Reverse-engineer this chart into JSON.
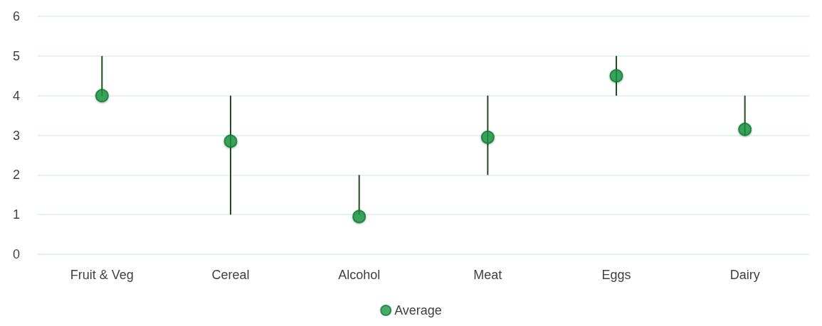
{
  "chart_data": {
    "type": "scatter",
    "categories": [
      "Fruit & Veg",
      "Cereal",
      "Alcohol",
      "Meat",
      "Eggs",
      "Dairy"
    ],
    "series": [
      {
        "name": "Average",
        "color": "#1a9641",
        "values": [
          4,
          2.85,
          0.95,
          2.95,
          4.5,
          3.15
        ],
        "errors": [
          [
            4,
            5
          ],
          [
            1,
            4
          ],
          [
            1,
            2
          ],
          [
            2,
            4
          ],
          [
            4,
            5
          ],
          [
            3,
            4
          ]
        ]
      }
    ],
    "ylim": [
      0,
      6
    ],
    "yticks": [
      0,
      1,
      2,
      3,
      4,
      5,
      6
    ],
    "grid": "y",
    "legend": "bottom",
    "marker": "circle"
  }
}
